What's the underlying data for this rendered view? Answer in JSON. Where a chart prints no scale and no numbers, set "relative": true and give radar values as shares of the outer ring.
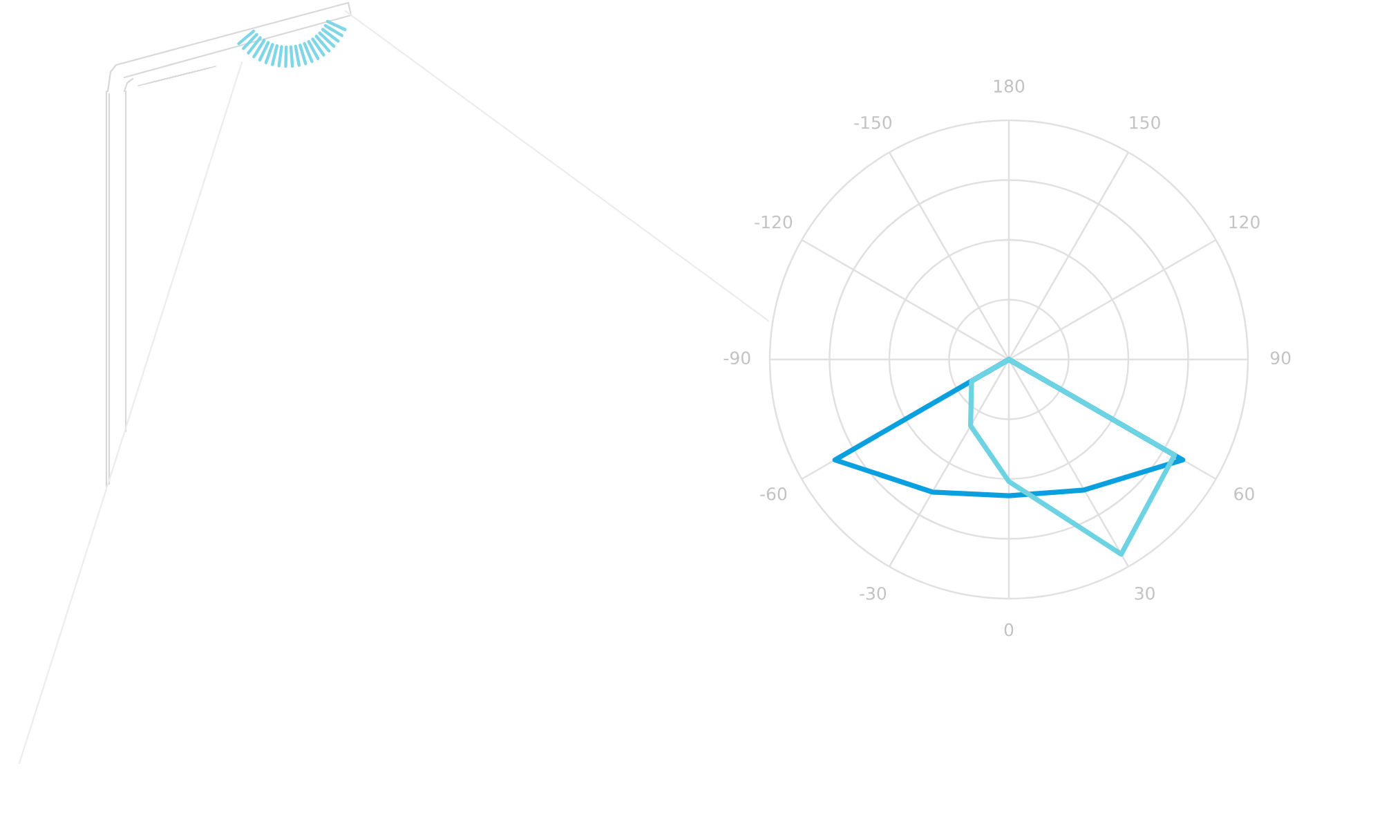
{
  "chart_data": {
    "type": "radar",
    "relative": true,
    "grid": true,
    "categories": [
      "180",
      "150",
      "120",
      "90",
      "60",
      "30",
      "0",
      "-30",
      "-60",
      "-90",
      "-120",
      "-150"
    ],
    "series": [
      {
        "color": "#0aa0e0",
        "values": [
          0,
          0,
          0,
          0,
          0.84,
          0.63,
          0.57,
          0.64,
          0.84,
          0,
          0,
          0
        ]
      },
      {
        "color": "#6dd3e2",
        "values": [
          0,
          0,
          0,
          0,
          0.8,
          0.94,
          0.51,
          0.32,
          0.18,
          0,
          0,
          0
        ]
      }
    ]
  }
}
